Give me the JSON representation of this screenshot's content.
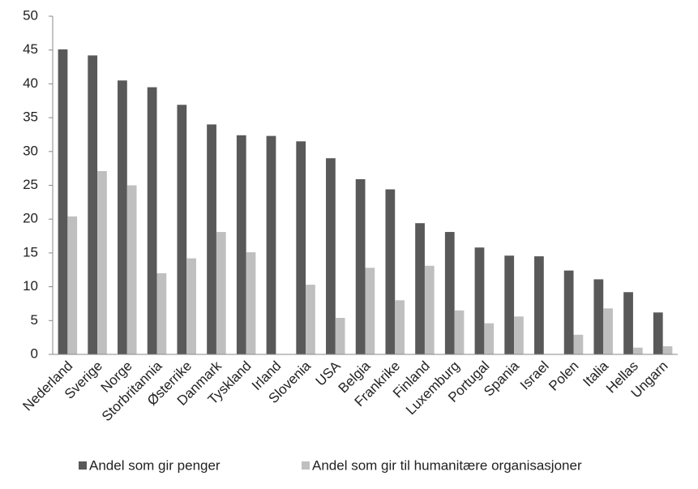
{
  "chart_data": {
    "type": "bar",
    "categories": [
      "Nederland",
      "Sverige",
      "Norge",
      "Storbritannia",
      "Østerrike",
      "Danmark",
      "Tyskland",
      "Irland",
      "Slovenia",
      "USA",
      "Belgia",
      "Frankrike",
      "Finland",
      "Luxemburg",
      "Portugal",
      "Spania",
      "Israel",
      "Polen",
      "Italia",
      "Hellas",
      "Ungarn"
    ],
    "series": [
      {
        "name": "Andel som gir penger",
        "color": "#595959",
        "values": [
          45.1,
          44.2,
          40.5,
          39.5,
          36.9,
          34.0,
          32.4,
          32.3,
          31.5,
          29.0,
          25.9,
          24.4,
          19.4,
          18.1,
          15.8,
          14.6,
          14.5,
          12.4,
          11.1,
          9.2,
          6.2
        ]
      },
      {
        "name": "Andel som gir til humanitære organisasjoner",
        "color": "#bfbfbf",
        "values": [
          20.4,
          27.1,
          25.0,
          12.0,
          14.2,
          18.1,
          15.1,
          null,
          10.3,
          5.4,
          12.8,
          8.0,
          13.1,
          6.5,
          4.6,
          5.6,
          null,
          2.9,
          6.8,
          1.0,
          1.2
        ]
      }
    ],
    "ylim": [
      0,
      50
    ],
    "yticks": [
      0,
      5,
      10,
      15,
      20,
      25,
      30,
      35,
      40,
      45,
      50
    ],
    "grid": false,
    "legend": "bottom"
  }
}
